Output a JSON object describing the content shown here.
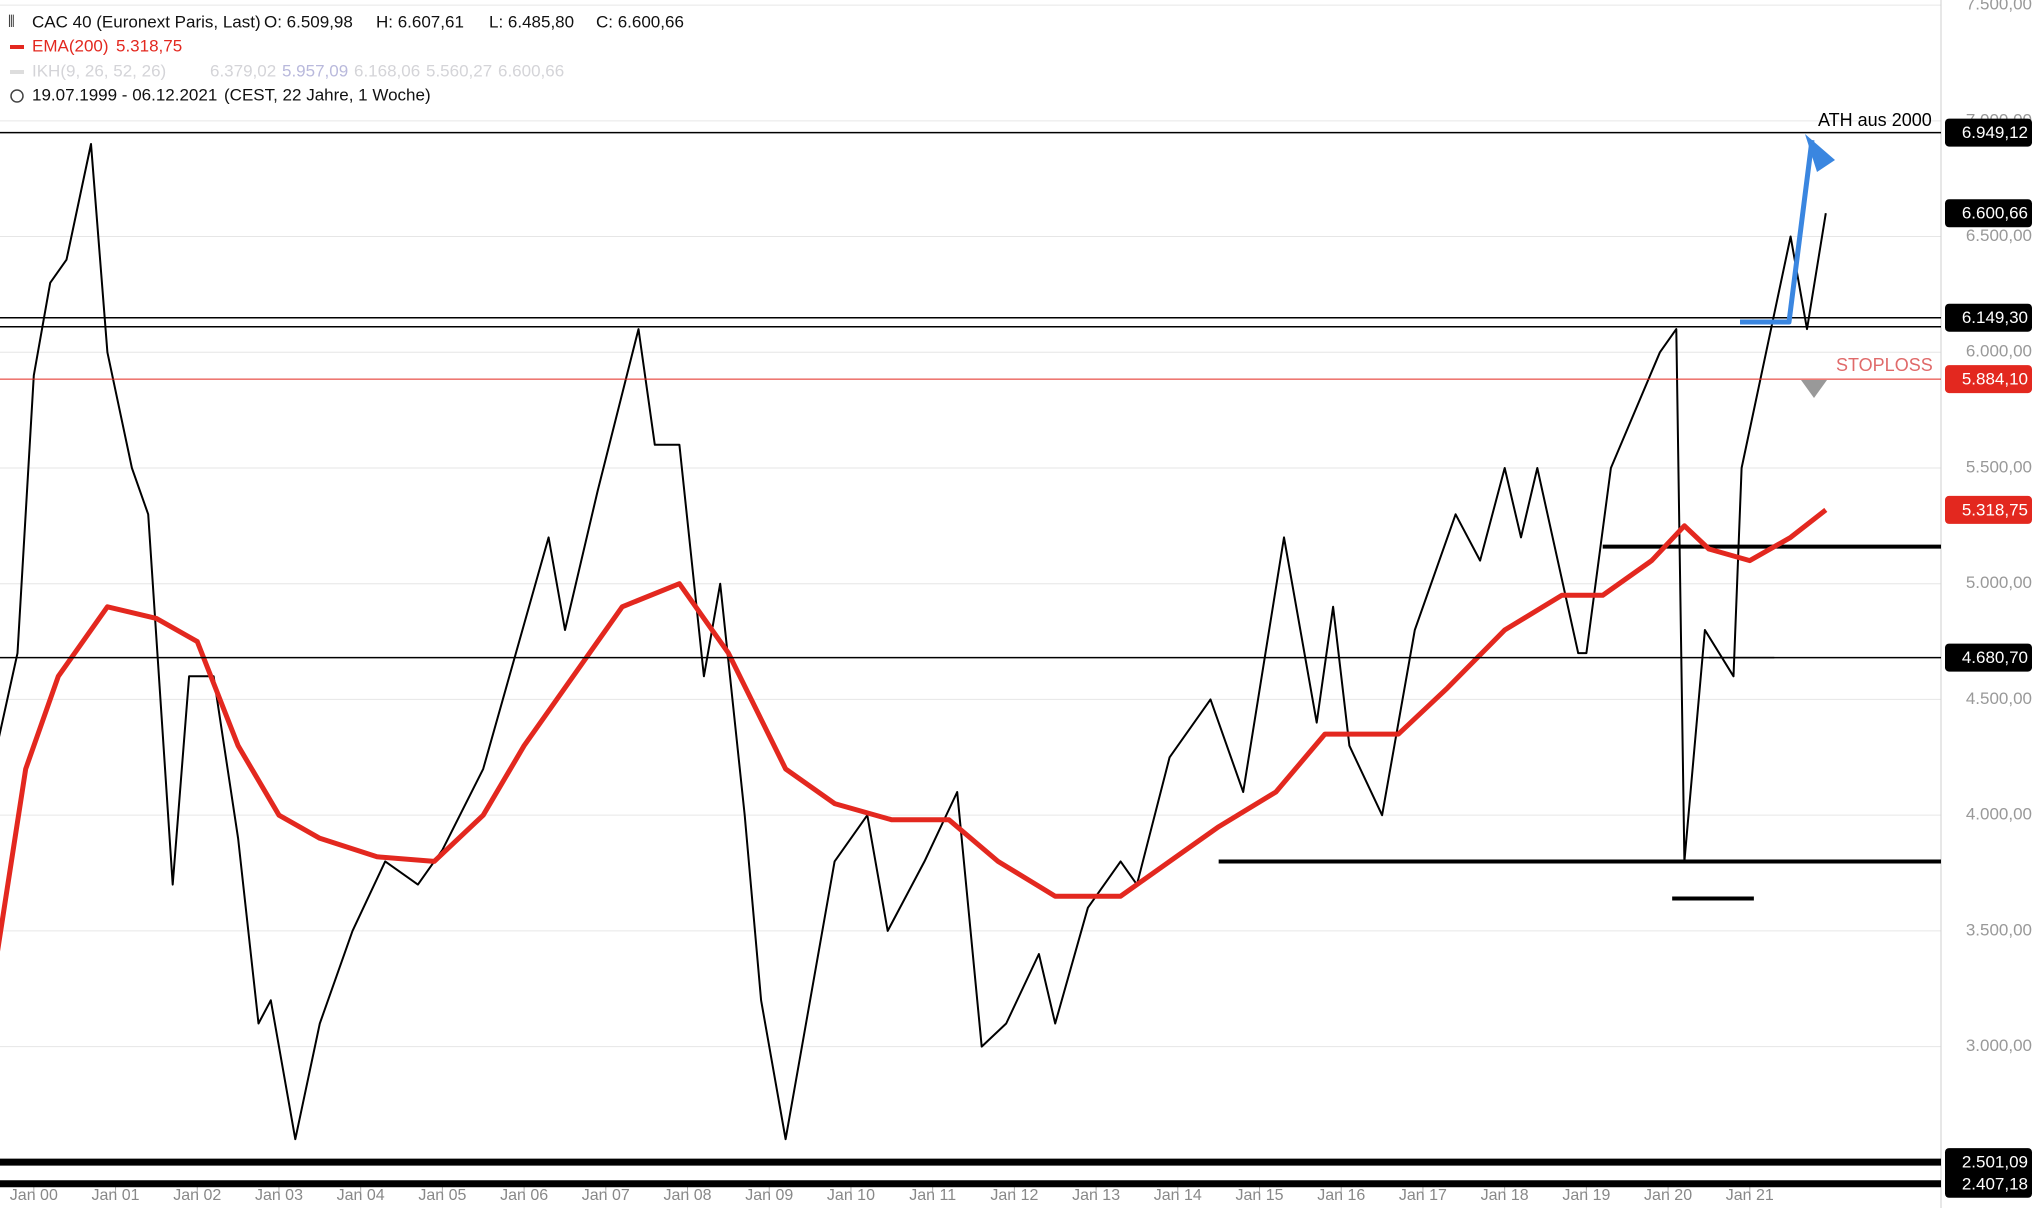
{
  "header": {
    "ohlc": [
      "O: 6.509,98",
      "H: 6.607,61",
      "L: 6.485,80",
      "C: 6.600,66"
    ],
    "ema_value": "5.318,75",
    "ikh_label": "IKH(9, 26, 52, 26)",
    "ikh_values": [
      "6.379,02",
      "5.957,09",
      "6.168,06",
      "5.560,27",
      "6.600,66"
    ],
    "range": "19.07.1999 - 06.12.2021",
    "range_note": "(CEST, 22 Jahre, 1 Woche)"
  },
  "chart_data": {
    "type": "line",
    "series": [
      {
        "name": "CAC 40 (Euronext Paris, Last)",
        "color": "#000000",
        "x": [
          1999.55,
          1999.8,
          2000.0,
          2000.2,
          2000.4,
          2000.7,
          2000.9,
          2001.2,
          2001.4,
          2001.7,
          2001.9,
          2002.2,
          2002.5,
          2002.75,
          2002.9,
          2003.2,
          2003.5,
          2003.9,
          2004.3,
          2004.7,
          2005.0,
          2005.5,
          2005.9,
          2006.3,
          2006.5,
          2006.9,
          2007.4,
          2007.6,
          2007.9,
          2008.2,
          2008.4,
          2008.7,
          2008.9,
          2009.2,
          2009.5,
          2009.8,
          2010.2,
          2010.45,
          2010.9,
          2011.3,
          2011.6,
          2011.9,
          2012.3,
          2012.5,
          2012.9,
          2013.3,
          2013.5,
          2013.9,
          2014.4,
          2014.8,
          2015.3,
          2015.7,
          2015.9,
          2016.1,
          2016.5,
          2016.9,
          2017.4,
          2017.7,
          2018.0,
          2018.2,
          2018.4,
          2018.9,
          2019.0,
          2019.3,
          2019.9,
          2020.1,
          2020.2,
          2020.45,
          2020.8,
          2020.9,
          2021.2,
          2021.5,
          2021.7,
          2021.93
        ],
        "values": [
          4300,
          4700,
          5900,
          6300,
          6400,
          6900,
          6000,
          5500,
          5300,
          3700,
          4600,
          4600,
          3900,
          3100,
          3200,
          2600,
          3100,
          3500,
          3800,
          3700,
          3850,
          4200,
          4700,
          5200,
          4800,
          5400,
          6100,
          5600,
          5600,
          4600,
          5000,
          4000,
          3200,
          2600,
          3200,
          3800,
          4000,
          3500,
          3800,
          4100,
          3000,
          3100,
          3400,
          3100,
          3600,
          3800,
          3700,
          4250,
          4500,
          4100,
          5200,
          4400,
          4900,
          4300,
          4000,
          4800,
          5300,
          5100,
          5500,
          5200,
          5500,
          4700,
          4700,
          5500,
          6000,
          6100,
          3800,
          4800,
          4600,
          5500,
          6000,
          6500,
          6100,
          6600.66
        ]
      },
      {
        "name": "EMA(200)",
        "color": "#e3281f",
        "x": [
          1999.55,
          1999.9,
          2000.3,
          2000.9,
          2001.5,
          2002.0,
          2002.5,
          2003.0,
          2003.5,
          2004.2,
          2004.9,
          2005.5,
          2006.0,
          2006.6,
          2007.2,
          2007.9,
          2008.5,
          2009.2,
          2009.8,
          2010.5,
          2011.2,
          2011.8,
          2012.5,
          2013.3,
          2013.9,
          2014.5,
          2015.2,
          2015.8,
          2016.7,
          2017.3,
          2018.0,
          2018.7,
          2019.2,
          2019.8,
          2020.2,
          2020.5,
          2021.0,
          2021.5,
          2021.93
        ],
        "values": [
          3400,
          4200,
          4600,
          4900,
          4850,
          4750,
          4300,
          4000,
          3900,
          3820,
          3800,
          4000,
          4300,
          4600,
          4900,
          5000,
          4700,
          4200,
          4050,
          3980,
          3980,
          3800,
          3650,
          3650,
          3800,
          3950,
          4100,
          4350,
          4350,
          4550,
          4800,
          4950,
          4950,
          5100,
          5250,
          5150,
          5100,
          5200,
          5318.75
        ]
      }
    ],
    "xlim": [
      1999.586,
      2023.34
    ],
    "xticks": [
      {
        "value": 2000,
        "label": "Jan 00"
      },
      {
        "value": 2001,
        "label": "Jan 01"
      },
      {
        "value": 2002,
        "label": "Jan 02"
      },
      {
        "value": 2003,
        "label": "Jan 03"
      },
      {
        "value": 2004,
        "label": "Jan 04"
      },
      {
        "value": 2005,
        "label": "Jan 05"
      },
      {
        "value": 2006,
        "label": "Jan 06"
      },
      {
        "value": 2007,
        "label": "Jan 07"
      },
      {
        "value": 2008,
        "label": "Jan 08"
      },
      {
        "value": 2009,
        "label": "Jan 09"
      },
      {
        "value": 2010,
        "label": "Jan 10"
      },
      {
        "value": 2011,
        "label": "Jan 11"
      },
      {
        "value": 2012,
        "label": "Jan 12"
      },
      {
        "value": 2013,
        "label": "Jan 13"
      },
      {
        "value": 2014,
        "label": "Jan 14"
      },
      {
        "value": 2015,
        "label": "Jan 15"
      },
      {
        "value": 2016,
        "label": "Jan 16"
      },
      {
        "value": 2017,
        "label": "Jan 17"
      },
      {
        "value": 2018,
        "label": "Jan 18"
      },
      {
        "value": 2019,
        "label": "Jan 19"
      },
      {
        "value": 2020,
        "label": "Jan 20"
      },
      {
        "value": 2021,
        "label": "Jan 21"
      }
    ],
    "ylim": [
      2402,
      7522
    ],
    "yticks": [
      {
        "value": 3000,
        "label": "3.000,00"
      },
      {
        "value": 3500,
        "label": "3.500,00"
      },
      {
        "value": 4000,
        "label": "4.000,00"
      },
      {
        "value": 4500,
        "label": "4.500,00"
      },
      {
        "value": 5000,
        "label": "5.000,00"
      },
      {
        "value": 5500,
        "label": "5.500,00"
      },
      {
        "value": 6000,
        "label": "6.000,00"
      },
      {
        "value": 6500,
        "label": "6.500,00"
      },
      {
        "value": 7000,
        "label": "7.000,00"
      },
      {
        "value": 7500,
        "label": "7.500,00"
      }
    ],
    "grid": true,
    "levels": [
      {
        "value": 6949.12,
        "label": "6.949,12",
        "color": "#000000",
        "line": true,
        "width": 1.5
      },
      {
        "value": 6600.66,
        "label": "6.600,66",
        "color": "#000000",
        "line": false
      },
      {
        "value": 6149.3,
        "label": "6.149,30",
        "color": "#000000",
        "line": true,
        "width": 1.5
      },
      {
        "value": 6110,
        "color": "#000000",
        "line": true,
        "width": 1.5
      },
      {
        "value": 5884.1,
        "label": "5.884,10",
        "color": "#e3281f",
        "line": true,
        "width": 1
      },
      {
        "value": 5318.75,
        "label": "5.318,75",
        "color": "#e3281f",
        "line": false
      },
      {
        "value": 4680.7,
        "label": "4.680,70",
        "color": "#000000",
        "line": true,
        "width": 1.5
      },
      {
        "value": 2501.09,
        "label": "2.501,09",
        "color": "#000000",
        "line": true,
        "width": 7
      },
      {
        "value": 2407.18,
        "label": "2.407,18",
        "color": "#000000",
        "line": true,
        "width": 7
      }
    ],
    "support_lines": [
      {
        "value": 3800,
        "from": 2014.5,
        "to": 2023.34
      },
      {
        "value": 5160,
        "from": 2019.2,
        "to": 2023.34
      },
      {
        "value": 3640,
        "from": 2020.05,
        "to": 2021.05
      },
      {
        "value": 4680.7,
        "from": 2020.5,
        "to": 2021.3
      }
    ],
    "annotations": [
      {
        "text": "ATH aus 2000",
        "color": "#000000"
      },
      {
        "text": "STOPLOSS",
        "color": "#e06a6a"
      }
    ]
  }
}
